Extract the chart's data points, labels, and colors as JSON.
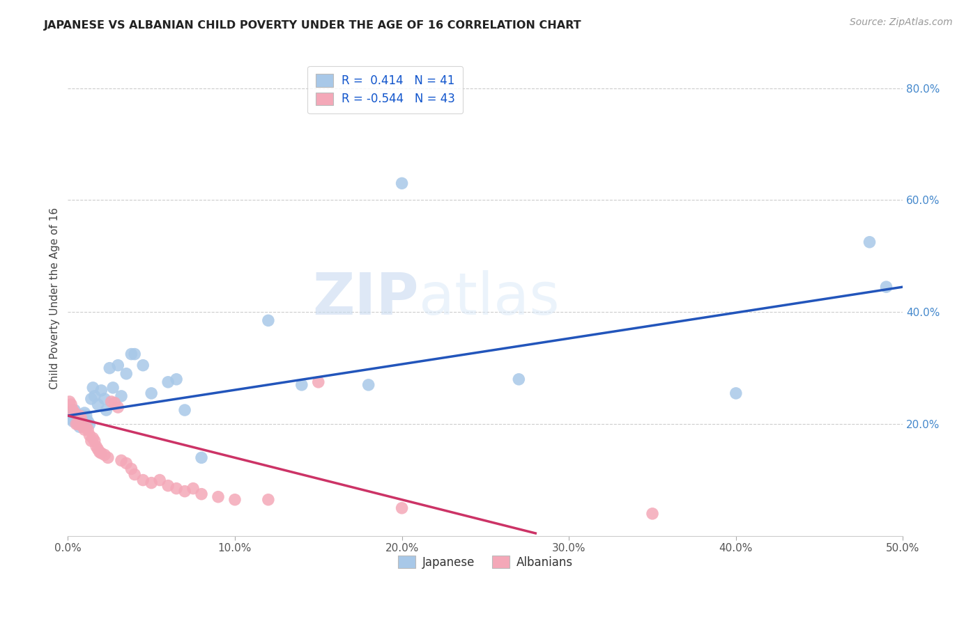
{
  "title": "JAPANESE VS ALBANIAN CHILD POVERTY UNDER THE AGE OF 16 CORRELATION CHART",
  "source": "Source: ZipAtlas.com",
  "ylabel": "Child Poverty Under the Age of 16",
  "xlim": [
    0.0,
    0.5
  ],
  "ylim": [
    0.0,
    0.85
  ],
  "xticks": [
    0.0,
    0.1,
    0.2,
    0.3,
    0.4,
    0.5
  ],
  "yticks": [
    0.2,
    0.4,
    0.6,
    0.8
  ],
  "ytick_labels": [
    "20.0%",
    "40.0%",
    "60.0%",
    "80.0%"
  ],
  "xtick_labels": [
    "0.0%",
    "",
    "",
    "",
    "",
    "50.0%"
  ],
  "background_color": "#ffffff",
  "watermark_text": "ZIP",
  "watermark_text2": "atlas",
  "japanese_color": "#a8c8e8",
  "albanian_color": "#f4a8b8",
  "japanese_line_color": "#2255bb",
  "albanian_line_color": "#cc3366",
  "grid_color": "#cccccc",
  "title_color": "#222222",
  "source_color": "#999999",
  "ytick_color": "#4488cc",
  "xtick_color": "#555555",
  "japanese_x": [
    0.001,
    0.002,
    0.003,
    0.004,
    0.005,
    0.006,
    0.007,
    0.008,
    0.009,
    0.01,
    0.011,
    0.012,
    0.013,
    0.014,
    0.015,
    0.016,
    0.018,
    0.02,
    0.022,
    0.023,
    0.025,
    0.027,
    0.03,
    0.032,
    0.035,
    0.038,
    0.04,
    0.045,
    0.05,
    0.06,
    0.065,
    0.07,
    0.08,
    0.12,
    0.14,
    0.18,
    0.2,
    0.27,
    0.4,
    0.48,
    0.49
  ],
  "japanese_y": [
    0.22,
    0.21,
    0.205,
    0.225,
    0.215,
    0.2,
    0.195,
    0.205,
    0.215,
    0.22,
    0.215,
    0.205,
    0.2,
    0.245,
    0.265,
    0.25,
    0.235,
    0.26,
    0.245,
    0.225,
    0.3,
    0.265,
    0.305,
    0.25,
    0.29,
    0.325,
    0.325,
    0.305,
    0.255,
    0.275,
    0.28,
    0.225,
    0.14,
    0.385,
    0.27,
    0.27,
    0.63,
    0.28,
    0.255,
    0.525,
    0.445
  ],
  "albanian_x": [
    0.001,
    0.002,
    0.003,
    0.004,
    0.005,
    0.006,
    0.007,
    0.008,
    0.009,
    0.01,
    0.011,
    0.012,
    0.013,
    0.014,
    0.015,
    0.016,
    0.017,
    0.018,
    0.019,
    0.02,
    0.022,
    0.024,
    0.026,
    0.028,
    0.03,
    0.032,
    0.035,
    0.038,
    0.04,
    0.045,
    0.05,
    0.055,
    0.06,
    0.065,
    0.07,
    0.075,
    0.08,
    0.09,
    0.1,
    0.12,
    0.15,
    0.2,
    0.35
  ],
  "albanian_y": [
    0.24,
    0.235,
    0.225,
    0.22,
    0.2,
    0.2,
    0.215,
    0.21,
    0.195,
    0.19,
    0.195,
    0.19,
    0.18,
    0.17,
    0.175,
    0.17,
    0.16,
    0.155,
    0.15,
    0.148,
    0.145,
    0.14,
    0.24,
    0.238,
    0.23,
    0.135,
    0.13,
    0.12,
    0.11,
    0.1,
    0.095,
    0.1,
    0.09,
    0.085,
    0.08,
    0.085,
    0.075,
    0.07,
    0.065,
    0.065,
    0.275,
    0.05,
    0.04
  ],
  "japanese_line_x0": 0.0,
  "japanese_line_x1": 0.5,
  "japanese_line_y0": 0.215,
  "japanese_line_y1": 0.445,
  "albanian_line_x0": 0.0,
  "albanian_line_x1": 0.28,
  "albanian_line_y0": 0.215,
  "albanian_line_y1": 0.005
}
